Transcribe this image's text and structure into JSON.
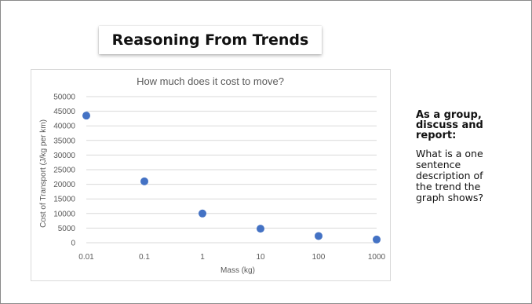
{
  "slide": {
    "title": "Reasoning From Trends",
    "prompt_heading_lines": [
      "As a group,",
      "discuss and",
      "report:"
    ],
    "prompt_body_lines": [
      "What is a one",
      "sentence",
      "description of",
      "the trend the",
      "graph shows?"
    ]
  },
  "chart_data": {
    "type": "scatter",
    "title": "How much does it cost to move?",
    "xlabel": "Mass (kg)",
    "ylabel": "Cost of Transport (J/kg per km)",
    "x_scale": "log",
    "x": [
      0.01,
      0.1,
      1,
      10,
      100,
      1000
    ],
    "y": [
      43500,
      21000,
      10000,
      4800,
      2300,
      1100
    ],
    "x_tick_labels": [
      "0.01",
      "0.1",
      "1",
      "10",
      "100",
      "1000"
    ],
    "y_tick_labels": [
      "0",
      "5000",
      "10000",
      "15000",
      "20000",
      "25000",
      "30000",
      "35000",
      "40000",
      "45000",
      "50000"
    ],
    "ylim": [
      0,
      50000
    ],
    "grid": "horizontal",
    "marker_color": "#4472C4",
    "gridline_color": "#d9d9d9",
    "text_color": "#595959"
  }
}
